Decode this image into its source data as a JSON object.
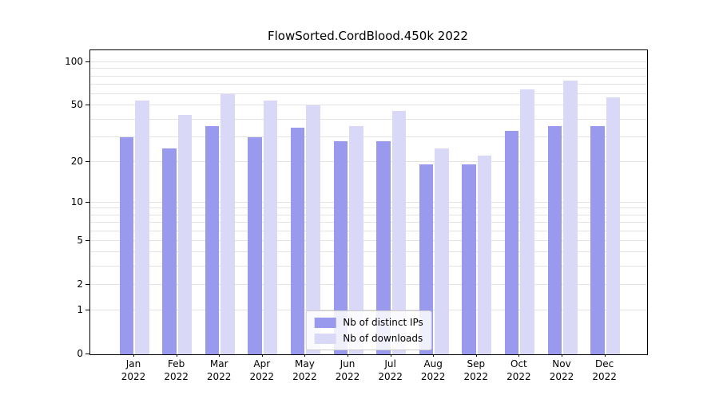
{
  "chart_data": {
    "type": "bar",
    "title": "FlowSorted.CordBlood.450k 2022",
    "scale": "log1p",
    "grid": true,
    "legend_position": "bottom-center",
    "categories": [
      "Jan",
      "Feb",
      "Mar",
      "Apr",
      "May",
      "Jun",
      "Jul",
      "Aug",
      "Sep",
      "Oct",
      "Nov",
      "Dec"
    ],
    "year_label": "2022",
    "series": [
      {
        "name": "Nb of distinct IPs",
        "color": "#9999ee",
        "values": [
          30,
          25,
          36,
          30,
          35,
          28,
          28,
          19,
          19,
          33,
          36,
          36
        ]
      },
      {
        "name": "Nb of downloads",
        "color": "#d9d9f7",
        "values": [
          54,
          43,
          60,
          54,
          50,
          36,
          46,
          25,
          22,
          65,
          75,
          57
        ]
      }
    ],
    "y_ticks": [
      0,
      1,
      2,
      5,
      10,
      20,
      50,
      100
    ],
    "gridline_values": [
      1,
      2,
      3,
      4,
      5,
      6,
      7,
      8,
      9,
      10,
      20,
      30,
      40,
      50,
      60,
      70,
      80,
      90,
      100
    ],
    "ylim": [
      0,
      110
    ]
  }
}
